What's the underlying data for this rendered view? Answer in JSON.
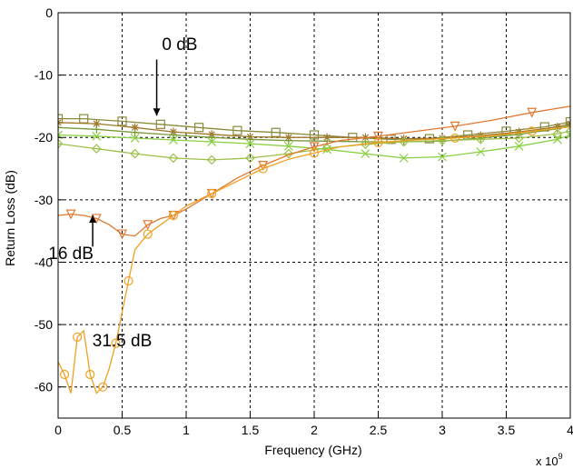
{
  "chart_data": {
    "type": "line",
    "title": "",
    "xlabel": "Frequency (GHz)",
    "ylabel": "Return Loss (dB)",
    "x_exponent_label": "x 10",
    "x_exponent_power": "9",
    "xlim": [
      0,
      4
    ],
    "ylim": [
      -65,
      0
    ],
    "xticks": [
      0,
      0.5,
      1,
      1.5,
      2,
      2.5,
      3,
      3.5,
      4
    ],
    "xtick_labels": [
      "0",
      "0.5",
      "1",
      "1.5",
      "2",
      "2.5",
      "3",
      "3.5",
      "4"
    ],
    "yticks": [
      0,
      -10,
      -20,
      -30,
      -40,
      -50,
      -60
    ],
    "ytick_labels": [
      "0",
      "-10",
      "-20",
      "-30",
      "-40",
      "-50",
      "-60"
    ],
    "grid": true,
    "legend": "none",
    "series": [
      {
        "color": "#8a8a3a",
        "marker": "square",
        "x": [
          0,
          0.2,
          0.5,
          0.8,
          1.1,
          1.4,
          1.7,
          2.0,
          2.3,
          2.6,
          2.9,
          3.2,
          3.5,
          3.8,
          4.0
        ],
        "y": [
          -17.0,
          -17.0,
          -17.4,
          -17.9,
          -18.4,
          -18.9,
          -19.2,
          -19.6,
          -20.0,
          -20.3,
          -20.2,
          -19.6,
          -19.0,
          -18.3,
          -17.5
        ]
      },
      {
        "color": "#a0762a",
        "marker": "star",
        "x": [
          0,
          0.3,
          0.6,
          0.9,
          1.2,
          1.5,
          1.8,
          2.1,
          2.4,
          2.7,
          3.0,
          3.3,
          3.6,
          3.9,
          4.0
        ],
        "y": [
          -17.6,
          -17.8,
          -18.4,
          -19.1,
          -19.5,
          -19.9,
          -20.0,
          -20.0,
          -20.0,
          -20.2,
          -20.1,
          -19.7,
          -19.1,
          -18.3,
          -17.8
        ]
      },
      {
        "color": "#7a9a3a",
        "marker": "plus",
        "x": [
          0,
          0.3,
          0.6,
          0.9,
          1.2,
          1.5,
          1.8,
          2.1,
          2.4,
          2.7,
          3.0,
          3.3,
          3.6,
          3.9,
          4.0
        ],
        "y": [
          -18.4,
          -18.7,
          -19.2,
          -19.6,
          -20.0,
          -20.3,
          -20.5,
          -20.6,
          -20.7,
          -20.7,
          -20.6,
          -20.1,
          -19.5,
          -18.6,
          -18.0
        ]
      },
      {
        "color": "#9cc048",
        "marker": "diamond",
        "x": [
          0,
          0.3,
          0.6,
          0.9,
          1.2,
          1.5,
          1.8,
          2.1,
          2.4,
          2.7,
          3.0,
          3.3,
          3.6,
          3.9,
          4.0
        ],
        "y": [
          -21.0,
          -21.8,
          -22.6,
          -23.3,
          -23.6,
          -23.3,
          -22.6,
          -21.7,
          -21.1,
          -20.7,
          -20.5,
          -20.3,
          -20.1,
          -19.4,
          -19.0
        ]
      },
      {
        "color": "#88d040",
        "marker": "x",
        "x": [
          0,
          0.3,
          0.6,
          0.9,
          1.2,
          1.5,
          1.8,
          2.1,
          2.4,
          2.7,
          3.0,
          3.3,
          3.6,
          3.9,
          4.0
        ],
        "y": [
          -19.6,
          -19.8,
          -20.1,
          -20.4,
          -20.7,
          -21.0,
          -21.4,
          -21.9,
          -22.6,
          -23.3,
          -23.1,
          -22.3,
          -21.4,
          -20.3,
          -19.6
        ]
      },
      {
        "color": "#e07830",
        "marker": "triangle-down",
        "x": [
          0,
          0.1,
          0.2,
          0.3,
          0.4,
          0.5,
          0.6,
          0.7,
          0.8,
          0.9,
          1.0,
          1.2,
          1.4,
          1.6,
          1.8,
          2.0,
          2.2,
          2.5,
          2.8,
          3.1,
          3.4,
          3.7,
          4.0
        ],
        "y": [
          -32.5,
          -32.3,
          -32.5,
          -33.0,
          -34.0,
          -35.5,
          -35.8,
          -34.0,
          -33.0,
          -32.5,
          -31.5,
          -29.0,
          -26.5,
          -24.5,
          -22.8,
          -21.5,
          -20.5,
          -19.8,
          -19.0,
          -18.2,
          -17.2,
          -16.0,
          -15.0
        ]
      },
      {
        "color": "#f0a020",
        "marker": "circle",
        "x": [
          0,
          0.05,
          0.1,
          0.15,
          0.2,
          0.25,
          0.3,
          0.35,
          0.4,
          0.45,
          0.5,
          0.55,
          0.6,
          0.7,
          0.8,
          0.9,
          1.0,
          1.2,
          1.4,
          1.6,
          1.8,
          2.0,
          2.2,
          2.5,
          2.8,
          3.1,
          3.4,
          3.7,
          4.0
        ],
        "y": [
          -56,
          -58,
          -61,
          -52,
          -51,
          -58,
          -61,
          -60,
          -57,
          -53,
          -48,
          -43,
          -38,
          -35.5,
          -34,
          -32.5,
          -31,
          -29,
          -27,
          -25,
          -23.5,
          -22.5,
          -21.5,
          -20.8,
          -20.4,
          -20.1,
          -19.7,
          -19.0,
          -18.3
        ]
      }
    ],
    "annotations": [
      {
        "text": "0 dB",
        "x": 0.95,
        "y": -6,
        "arrow_from": [
          0.77,
          -7.5
        ],
        "arrow_to": [
          0.77,
          -16.5
        ]
      },
      {
        "text": "16 dB",
        "x": 0.1,
        "y": -39.5,
        "arrow_from": [
          0.27,
          -37.5
        ],
        "arrow_to": [
          0.27,
          -32.5
        ]
      },
      {
        "text": "31.5 dB",
        "x": 0.5,
        "y": -53.5
      }
    ]
  }
}
